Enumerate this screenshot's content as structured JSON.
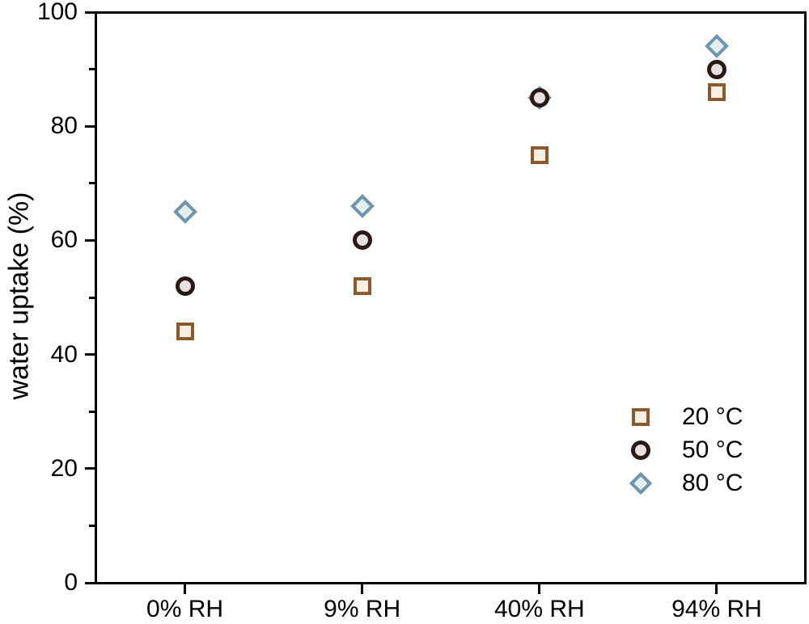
{
  "figure": {
    "background_color": "#ffffff",
    "frame_color": "#000000",
    "text_color": "#000000"
  },
  "chart_data": {
    "type": "scatter",
    "title": "",
    "xlabel": "",
    "ylabel": "water uptake (%)",
    "categories": [
      "0% RH",
      "9% RH",
      "40% RH",
      "94% RH"
    ],
    "ylim": [
      0,
      100
    ],
    "y_major_ticks": [
      0,
      20,
      40,
      60,
      80,
      100
    ],
    "y_minor_ticks": [
      10,
      30,
      50,
      70,
      90
    ],
    "grid": false,
    "legend_position": "inside lower right",
    "series": [
      {
        "name": "20 °C",
        "marker": "square",
        "fill_color": "#f8eee1",
        "stroke_color": "#8a5a2e",
        "values": [
          44,
          52,
          75,
          86
        ]
      },
      {
        "name": "50 °C",
        "marker": "circle",
        "fill_color": "#e5e1e1",
        "stroke_color": "#2a1a13",
        "values": [
          52,
          60,
          85,
          90
        ]
      },
      {
        "name": "80 °C",
        "marker": "diamond",
        "fill_color": "#e3efec",
        "stroke_color": "#6e95ad",
        "values": [
          65,
          66,
          85,
          94
        ]
      }
    ]
  }
}
